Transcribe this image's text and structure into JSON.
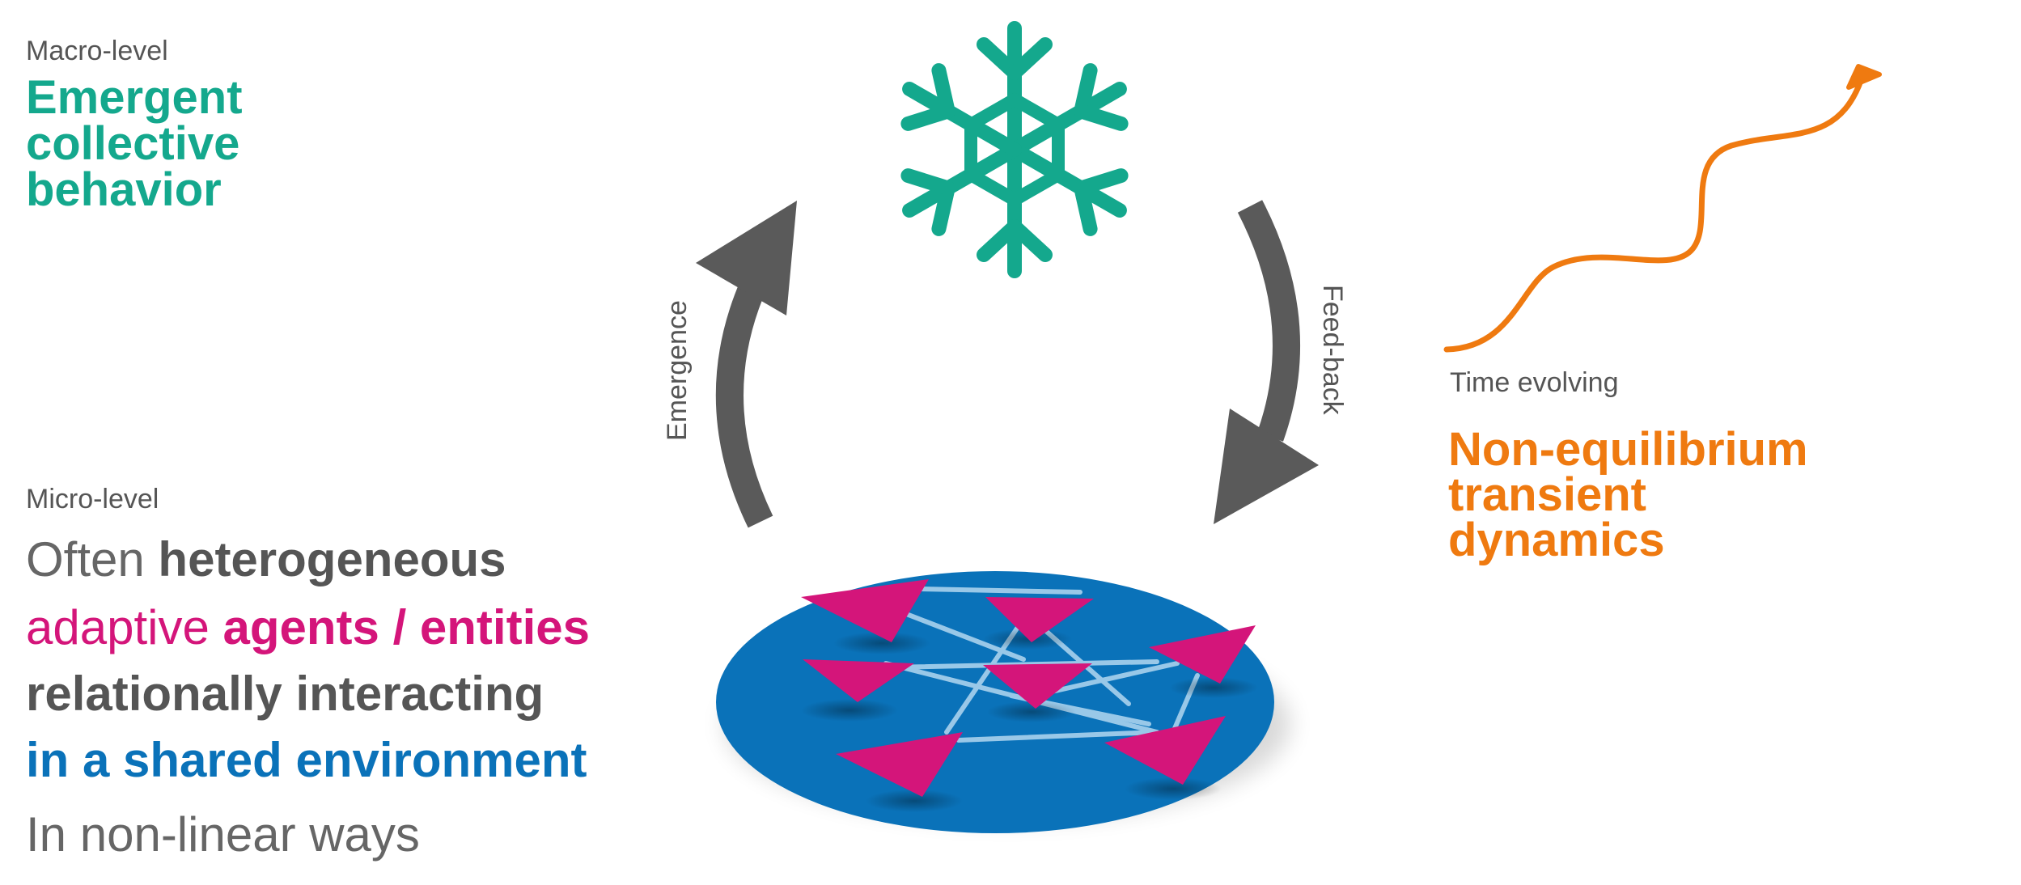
{
  "macro": {
    "label": "Macro-level",
    "heading": [
      "Emergent",
      "collective",
      "behavior"
    ]
  },
  "micro": {
    "label": "Micro-level",
    "lines": [
      {
        "normal": "Often ",
        "bold": "heterogeneous"
      },
      {
        "normal": "adaptive ",
        "bold": "agents / entities"
      },
      {
        "bold": "relationally interacting"
      },
      {
        "bold": "in a shared environment"
      },
      {
        "normal": "In non-linear ways"
      }
    ]
  },
  "arrows": {
    "emergence": "Emergence",
    "feedback": "Feed-back"
  },
  "time": {
    "label": "Time evolving",
    "heading": [
      "Non-equilibrium",
      "transient",
      "dynamics"
    ]
  },
  "colors": {
    "teal": "#14a88d",
    "magenta": "#d4157a",
    "blue": "#0a72b9",
    "orange": "#ef7a10",
    "arrow_gray": "#5a5a5a"
  },
  "icons": {
    "macro_symbol": "snowflake-icon",
    "time_symbol": "wavy-arrow-icon"
  }
}
